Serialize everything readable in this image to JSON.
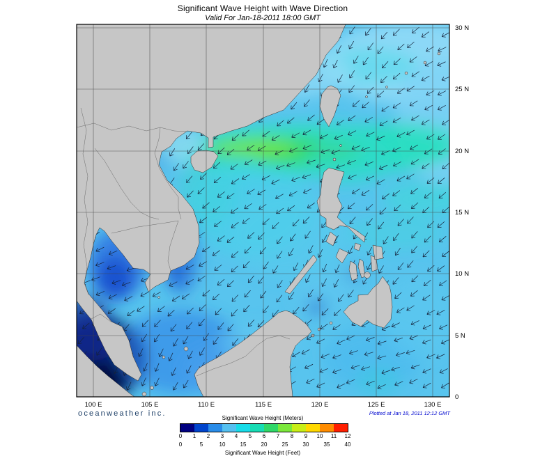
{
  "title": "Significant Wave Height with Wave Direction",
  "subtitle": "Valid For Jan-18-2011 18:00 GMT",
  "branding": "oceanweather inc.",
  "plotted_label": "Plotted at Jan 18, 2011 12:12 GMT",
  "axes": {
    "lon_labels": [
      "100 E",
      "105 E",
      "110 E",
      "115 E",
      "120 E",
      "125 E",
      "130 E"
    ],
    "lat_labels": [
      "30 N",
      "25 N",
      "20 N",
      "15 N",
      "10 N",
      "5 N",
      "0"
    ]
  },
  "legend": {
    "meters_title": "Significant Wave Height (Meters)",
    "feet_title": "Significant Wave Height (Feet)",
    "meter_ticks": [
      "0",
      "1",
      "2",
      "3",
      "4",
      "5",
      "6",
      "7",
      "8",
      "9",
      "10",
      "11",
      "12"
    ],
    "feet_ticks": [
      "0",
      "5",
      "10",
      "15",
      "20",
      "25",
      "30",
      "35",
      "40"
    ],
    "palette": [
      "#000080",
      "#0044cc",
      "#2a8ce8",
      "#55c0f0",
      "#17dce8",
      "#17dcb4",
      "#30d868",
      "#7ce83c",
      "#c8ee17",
      "#ffd800",
      "#ff8c00",
      "#ff1e00"
    ]
  },
  "map": {
    "land_color": "#c6c6c6",
    "ocean_base_color": "#58c4ee",
    "arrow_color": "#15223a",
    "grid_color": "#444444",
    "frame_color": "#000000"
  }
}
